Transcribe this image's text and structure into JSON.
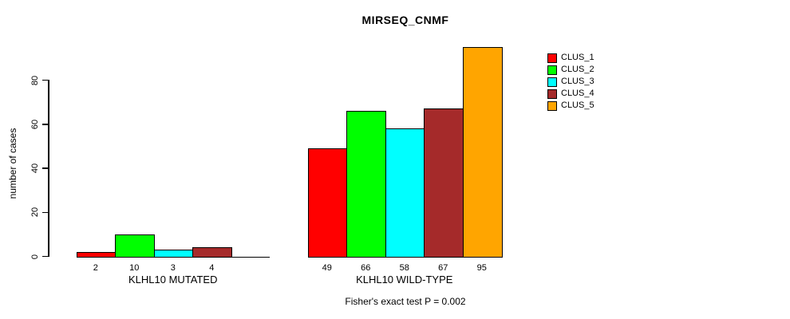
{
  "chart_data": {
    "type": "bar",
    "title": "MIRSEQ_CNMF",
    "ylabel": "number of cases",
    "yticks": [
      0,
      20,
      40,
      60,
      80
    ],
    "ylim": [
      0,
      95
    ],
    "grid": false,
    "legend_position": "right",
    "legend": [
      {
        "name": "CLUS_1",
        "color": "#FF0000"
      },
      {
        "name": "CLUS_2",
        "color": "#00FF00"
      },
      {
        "name": "CLUS_3",
        "color": "#00FFFF"
      },
      {
        "name": "CLUS_4",
        "color": "#A52A2A"
      },
      {
        "name": "CLUS_5",
        "color": "#FFA500"
      }
    ],
    "slots_per_group": 5,
    "groups": [
      {
        "label": "KLHL10 MUTATED",
        "values": [
          2,
          10,
          3,
          4
        ],
        "bar_labels": [
          "2",
          "10",
          "3",
          "4"
        ]
      },
      {
        "label": "KLHL10 WILD-TYPE",
        "values": [
          49,
          66,
          58,
          67,
          95
        ],
        "bar_labels": [
          "49",
          "66",
          "58",
          "67",
          "95"
        ]
      }
    ],
    "footnote": "Fisher's exact test P = 0.002"
  }
}
